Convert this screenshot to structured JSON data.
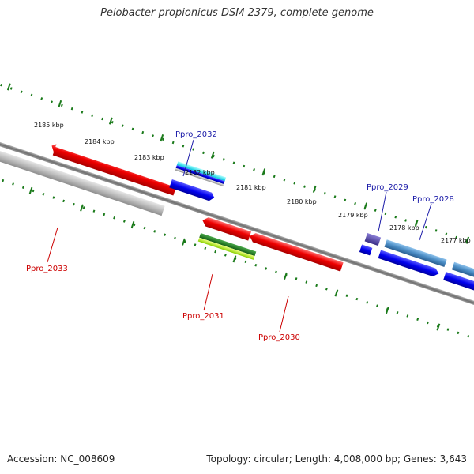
{
  "title": "Pelobacter propionicus DSM 2379, complete genome",
  "footer": {
    "accession": "Accession: NC_008609",
    "summary": "Topology: circular; Length: 4,008,000 bp; Genes: 3,643"
  },
  "colors": {
    "backbone": "#7a7a7a",
    "ticks": "#1a7a1a",
    "forward_label": "#1a1aa8",
    "reverse_label": "#cc0000"
  },
  "ruler": {
    "labels": [
      "2185 kbp",
      "2184 kbp",
      "2183 kbp",
      "2182 kbp",
      "2181 kbp",
      "2180 kbp",
      "2179 kbp",
      "2178 kbp",
      "2177 kbp"
    ]
  },
  "genes": {
    "forward": [
      {
        "label": "Ppro_2032",
        "color": "#1a1acc"
      },
      {
        "label": "Ppro_2029",
        "color": "#1a1acc"
      },
      {
        "label": "Ppro_2028",
        "color": "#1a1acc"
      }
    ],
    "reverse": [
      {
        "label": "Ppro_2033",
        "color": "#cc0000"
      },
      {
        "label": "Ppro_2031",
        "color": "#cc0000"
      },
      {
        "label": "Ppro_2030",
        "color": "#cc0000"
      }
    ]
  }
}
